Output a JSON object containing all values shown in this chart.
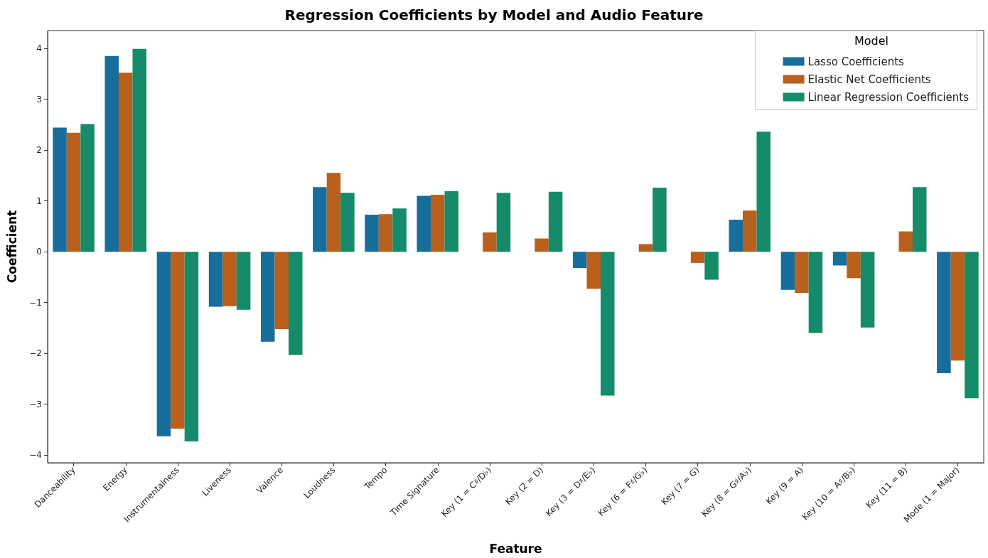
{
  "chart_data": {
    "type": "bar",
    "title": "Regression Coefficients by Model and Audio Feature",
    "xlabel": "Feature",
    "ylabel": "Coefficient",
    "legend_title": "Model",
    "legend": "top right",
    "grid": false,
    "categories": [
      "Danceability",
      "Energy",
      "Instrumentalness",
      "Liveness",
      "Valence",
      "Loudness",
      "Tempo",
      "Time Signature",
      "Key (1 = C♯/D♭)",
      "Key (2 = D)",
      "Key (3 = D♯/E♭)",
      "Key (6 = F♯/G♭)",
      "Key (7 = G)",
      "Key (8 = G♯/A♭)",
      "Key (9 = A)",
      "Key (10 = A♯/B♭)",
      "Key (11 = B)",
      "Mode (1 = Major)"
    ],
    "ylim": [
      -4.15,
      4.35
    ],
    "yticks": [
      -4,
      -3,
      -2,
      -1,
      0,
      1,
      2,
      3,
      4
    ],
    "series": [
      {
        "name": "Lasso Coefficients",
        "color": "#176d9c",
        "values": [
          2.44,
          3.85,
          -3.63,
          -1.08,
          -1.77,
          1.27,
          0.73,
          1.1,
          0,
          0,
          -0.32,
          0,
          0,
          0.63,
          -0.75,
          -0.27,
          0,
          -2.39
        ]
      },
      {
        "name": "Elastic Net Coefficients",
        "color": "#b8601c",
        "values": [
          2.34,
          3.52,
          -3.48,
          -1.07,
          -1.52,
          1.55,
          0.74,
          1.12,
          0.38,
          0.26,
          -0.73,
          0.15,
          -0.22,
          0.81,
          -0.81,
          -0.52,
          0.4,
          -2.14
        ]
      },
      {
        "name": "Linear Regression Coefficients",
        "color": "#168b69",
        "values": [
          2.51,
          3.99,
          -3.73,
          -1.14,
          -2.03,
          1.16,
          0.85,
          1.19,
          1.16,
          1.18,
          -2.83,
          1.26,
          -0.55,
          2.36,
          -1.6,
          -1.49,
          1.27,
          -2.88
        ]
      }
    ]
  }
}
